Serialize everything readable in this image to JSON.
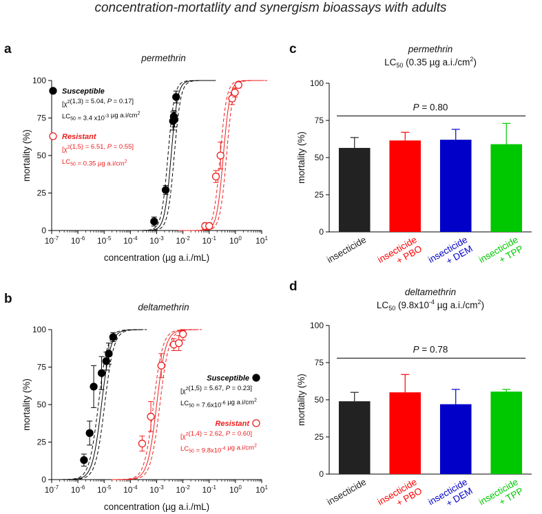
{
  "page_title": "concentration-mortatlity and synergism bioassays with adults",
  "colors": {
    "susceptible": "#000000",
    "resistant": "#ee1c1c",
    "bars": [
      "#222222",
      "#ff0000",
      "#0000c8",
      "#00c800"
    ]
  },
  "chart_data": [
    {
      "panel": "a",
      "type": "scatter",
      "title": "permethrin",
      "xlabel": "concentration (µg a.i./mL)",
      "ylabel": "mortality (%)",
      "xscale": "log",
      "xlim": [
        1e-07,
        10
      ],
      "ylim": [
        0,
        100
      ],
      "xtick_labels": [
        "10-7",
        "10-6",
        "10-5",
        "10-4",
        "10-3",
        "10-2",
        "10-1",
        "100",
        "101"
      ],
      "ytick_labels": [
        "0",
        "25",
        "50",
        "75",
        "100"
      ],
      "legend_position": "top-left",
      "series": [
        {
          "name": "Susceptible",
          "marker": "filled-circle",
          "stat_line1": "[χ2(1,3) = 5.04, P = 0.17]",
          "stat_line2": "LC50 = 3.4 x10-3 µg a.i/cm2",
          "x": [
            0.0008,
            0.0022,
            0.0042,
            0.0045,
            0.0048,
            0.0055
          ],
          "y": [
            6,
            27,
            73,
            76,
            74,
            89
          ],
          "err": [
            3,
            3,
            6,
            4,
            5,
            4
          ],
          "fit_center_log10": -2.45,
          "fit_slope": 3.5
        },
        {
          "name": "Resistant",
          "marker": "open-circle",
          "stat_line1": "[χ2(1,5) = 6.51, P = 0.55]",
          "stat_line2": "LC50 = 0.35 µg a.i/cm2",
          "x": [
            0.07,
            0.1,
            0.18,
            0.27,
            0.75,
            0.95,
            1.3
          ],
          "y": [
            3,
            3,
            36,
            50,
            88,
            92,
            97
          ],
          "err": [
            2,
            2,
            4,
            9,
            4,
            3,
            2
          ],
          "fit_center_log10": -0.46,
          "fit_slope": 3.5
        }
      ]
    },
    {
      "panel": "b",
      "type": "scatter",
      "title": "deltamethrin",
      "xlabel": "concentration (µg a.i./mL)",
      "ylabel": "mortality (%)",
      "xscale": "log",
      "xlim": [
        1e-07,
        10
      ],
      "ylim": [
        0,
        100
      ],
      "xtick_labels": [
        "10-7",
        "10-6",
        "10-5",
        "10-4",
        "10-3",
        "10-2",
        "10-1",
        "100",
        "101"
      ],
      "ytick_labels": [
        "0",
        "25",
        "50",
        "75",
        "100"
      ],
      "legend_position": "right",
      "series": [
        {
          "name": "Susceptible",
          "marker": "filled-circle",
          "stat_line1": "[χ2(1,5) = 5.67, P = 0.23]",
          "stat_line2": "LC50 = 7.6x10-6 µg a.i/cm2",
          "x": [
            1.7e-06,
            2.8e-06,
            4e-06,
            8e-06,
            1.2e-05,
            1.5e-05,
            2.2e-05
          ],
          "y": [
            13,
            31,
            62,
            71,
            79,
            84,
            95
          ],
          "err": [
            4,
            8,
            14,
            11,
            6,
            7,
            3
          ],
          "fit_center_log10": -5.1,
          "fit_slope": 2.5
        },
        {
          "name": "Resistant",
          "marker": "open-circle",
          "stat_line1": "[χ2(1,4) = 2.62, P = 0.60]",
          "stat_line2": "LC50 = 9.8x10-4 µg a.i/cm2",
          "x": [
            0.00028,
            0.0006,
            0.0015,
            0.0045,
            0.007,
            0.01
          ],
          "y": [
            24,
            42,
            76,
            90,
            91,
            97
          ],
          "err": [
            5,
            10,
            8,
            4,
            5,
            4
          ],
          "fit_center_log10": -3.0,
          "fit_slope": 2.5
        }
      ]
    },
    {
      "panel": "c",
      "type": "bar",
      "title": "permethrin",
      "subtitle_main": "LC",
      "subtitle_sub": "50",
      "subtitle_rest": " (0.35 µg a.i./cm",
      "subtitle_sup": "2",
      "subtitle_end": ")",
      "ylabel": "mortality (%)",
      "ylim": [
        0,
        100
      ],
      "ytick_labels": [
        "0",
        "25",
        "50",
        "75",
        "100"
      ],
      "categories": [
        [
          "insecticide"
        ],
        [
          "insecticide",
          "+ PBO"
        ],
        [
          "insecticide",
          "+ DEM"
        ],
        [
          "insecticide",
          "+ TPP"
        ]
      ],
      "values": [
        56.5,
        61.5,
        62,
        59
      ],
      "err": [
        7,
        5.5,
        7,
        14
      ],
      "p_prefix": "P",
      "p_value": " = 0.80"
    },
    {
      "panel": "d",
      "type": "bar",
      "title": "deltamethrin",
      "subtitle_main": "LC",
      "subtitle_sub": "50",
      "subtitle_rest": " (9.8x10",
      "subtitle_sup": "-4",
      "subtitle_rest2": " µg a.i./cm",
      "subtitle_sup2": "2",
      "subtitle_end": ")",
      "ylabel": "mortality (%)",
      "ylim": [
        0,
        100
      ],
      "ytick_labels": [
        "0",
        "25",
        "50",
        "75",
        "100"
      ],
      "categories": [
        [
          "insecticide"
        ],
        [
          "insecticide",
          "+ PBO"
        ],
        [
          "insecticide",
          "+ DEM"
        ],
        [
          "insecticide",
          "+ TPP"
        ]
      ],
      "values": [
        49,
        55,
        47,
        55.5
      ],
      "err": [
        6,
        12,
        10,
        1.5
      ],
      "p_prefix": "P",
      "p_value": " = 0.78"
    }
  ]
}
